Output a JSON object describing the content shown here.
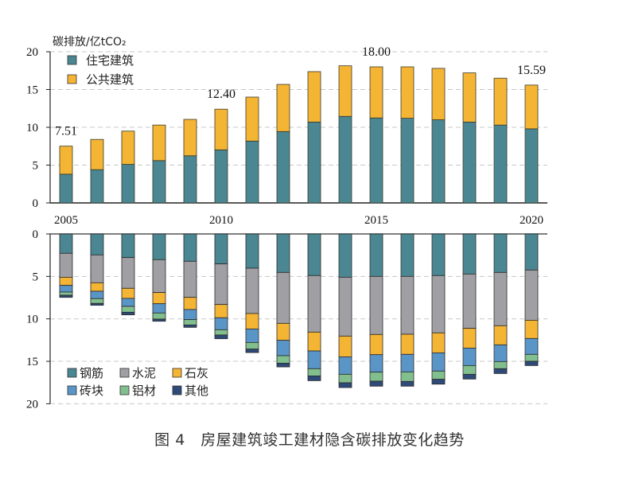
{
  "caption": "图 4　房屋建筑竣工建材隐含碳排放变化趋势",
  "chart_data": [
    {
      "type": "bar",
      "stacked": true,
      "title": "",
      "ylabel": "碳排放/亿tCO₂",
      "xlabel": "",
      "ylim": [
        0,
        20
      ],
      "yticks": [
        0,
        5,
        10,
        15,
        20
      ],
      "grid": "horizontal-dashed",
      "legend_position": "top-left",
      "categories": [
        "2005",
        "2006",
        "2007",
        "2008",
        "2009",
        "2010",
        "2011",
        "2012",
        "2013",
        "2014",
        "2015",
        "2016",
        "2017",
        "2018",
        "2019",
        "2020"
      ],
      "x_tick_labels": [
        "2005",
        "2010",
        "2015",
        "2020"
      ],
      "series": [
        {
          "name": "住宅建筑",
          "color": "#4a8793",
          "values": [
            3.8,
            4.4,
            5.1,
            5.6,
            6.24,
            7.02,
            8.18,
            9.44,
            10.7,
            11.45,
            11.24,
            11.2,
            11.0,
            10.7,
            10.3,
            9.8
          ]
        },
        {
          "name": "公共建筑",
          "color": "#f4b434",
          "values": [
            3.71,
            4.0,
            4.4,
            4.7,
            4.81,
            5.38,
            5.82,
            6.24,
            6.67,
            6.69,
            6.76,
            6.8,
            6.8,
            6.5,
            6.2,
            5.79
          ]
        }
      ],
      "totals": [
        7.51,
        8.4,
        9.5,
        10.3,
        11.05,
        12.4,
        14.0,
        15.68,
        17.37,
        18.14,
        18.0,
        18.0,
        17.8,
        17.2,
        16.5,
        15.59
      ],
      "annotations": [
        {
          "category": "2005",
          "text": "7.51"
        },
        {
          "category": "2010",
          "text": "12.40"
        },
        {
          "category": "2015",
          "text": "18.00"
        },
        {
          "category": "2020",
          "text": "15.59"
        }
      ]
    },
    {
      "type": "bar",
      "stacked": true,
      "orientation": "downward",
      "title": "",
      "ylabel": "",
      "xlabel": "",
      "ylim": [
        0,
        20
      ],
      "yticks": [
        0,
        5,
        10,
        15,
        20
      ],
      "grid": "horizontal-dashed",
      "legend_position": "bottom-left",
      "categories": [
        "2005",
        "2006",
        "2007",
        "2008",
        "2009",
        "2010",
        "2011",
        "2012",
        "2013",
        "2014",
        "2015",
        "2016",
        "2017",
        "2018",
        "2019",
        "2020"
      ],
      "series": [
        {
          "name": "钢筋",
          "color": "#4a8793",
          "values": [
            2.28,
            2.47,
            2.78,
            3.03,
            3.22,
            3.53,
            4.03,
            4.53,
            4.9,
            5.1,
            5.0,
            5.0,
            4.9,
            4.72,
            4.53,
            4.25
          ]
        },
        {
          "name": "水泥",
          "color": "#a0a0a4",
          "values": [
            2.82,
            3.28,
            3.62,
            3.87,
            4.25,
            4.78,
            5.34,
            6.0,
            6.66,
            6.93,
            6.84,
            6.81,
            6.75,
            6.4,
            6.28,
            5.91
          ]
        },
        {
          "name": "石灰",
          "color": "#f4b434",
          "values": [
            0.96,
            1.0,
            1.19,
            1.32,
            1.43,
            1.56,
            1.82,
            2.0,
            2.22,
            2.44,
            2.38,
            2.37,
            2.35,
            2.32,
            2.25,
            2.15
          ]
        },
        {
          "name": "砖块",
          "color": "#5a95c8",
          "values": [
            0.78,
            0.87,
            0.94,
            1.09,
            1.19,
            1.41,
            1.59,
            1.81,
            2.09,
            2.06,
            2.06,
            2.07,
            2.15,
            2.06,
            1.97,
            1.87
          ]
        },
        {
          "name": "铝材",
          "color": "#82bf8e",
          "values": [
            0.38,
            0.56,
            0.69,
            0.72,
            0.63,
            0.62,
            0.78,
            0.88,
            0.85,
            1.0,
            1.06,
            1.12,
            0.97,
            1.03,
            0.84,
            0.82
          ]
        },
        {
          "name": "其他",
          "color": "#2e4a78",
          "values": [
            0.25,
            0.22,
            0.31,
            0.25,
            0.28,
            0.44,
            0.41,
            0.44,
            0.56,
            0.56,
            0.59,
            0.56,
            0.57,
            0.56,
            0.57,
            0.5
          ]
        }
      ]
    }
  ]
}
